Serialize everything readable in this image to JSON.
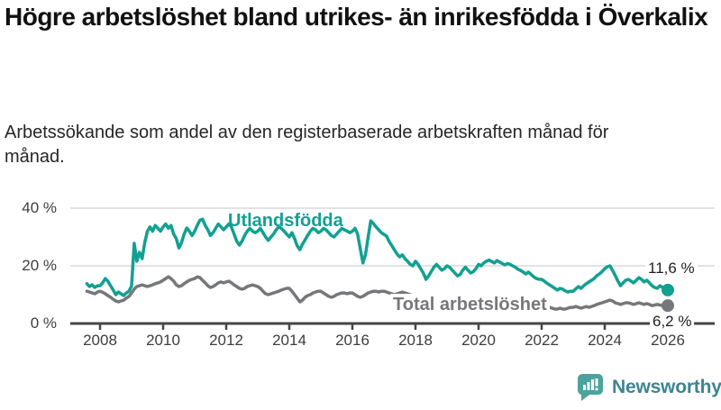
{
  "header": {
    "title": "Högre arbetslöshet bland utrikes- än inrikesfödda i Överkalix",
    "subtitle": "Arbetssökande som andel av den registerbaserade arbetskraften månad för månad."
  },
  "chart_data": {
    "type": "line",
    "title": "Högre arbetslöshet bland utrikes- än inrikesfödda i Överkalix",
    "xlabel": "",
    "ylabel": "",
    "xlim": [
      2007.3,
      2026.9
    ],
    "ylim": [
      0,
      44
    ],
    "grid": "horizontal-only",
    "legend_position": "inline-labels-on-lines",
    "x_ticks": [
      2008,
      2010,
      2012,
      2014,
      2016,
      2018,
      2020,
      2022,
      2024,
      2026
    ],
    "y_ticks": [
      {
        "value": 0,
        "label": "0 %"
      },
      {
        "value": 20,
        "label": "20 %"
      },
      {
        "value": 40,
        "label": "40 %"
      }
    ],
    "x_start_year": 2007.5833,
    "x_step_years": 0.08333,
    "series": [
      {
        "name": "Utlandsfödda",
        "color": "#12A092",
        "end_label": "11,6 %",
        "end_value": 11.6,
        "values": [
          13.8,
          12.8,
          13.4,
          12.5,
          13.1,
          13.1,
          14.1,
          15.6,
          14.7,
          13.1,
          11.6,
          10.0,
          10.9,
          10.3,
          9.7,
          10.6,
          11.2,
          13.0,
          27.8,
          21.6,
          24.7,
          22.5,
          28.0,
          31.9,
          33.5,
          32.0,
          34.0,
          33.0,
          32.0,
          33.5,
          34.5,
          33.0,
          34.0,
          31.0,
          29.4,
          26.2,
          28.0,
          31.0,
          33.1,
          32.0,
          30.5,
          32.0,
          34.0,
          35.8,
          36.2,
          34.0,
          32.5,
          30.5,
          31.5,
          33.0,
          34.5,
          33.5,
          32.5,
          33.5,
          34.5,
          33.5,
          31.0,
          28.5,
          27.2,
          28.5,
          30.5,
          32.0,
          33.0,
          32.0,
          31.5,
          32.0,
          33.0,
          31.5,
          30.0,
          28.8,
          30.0,
          31.0,
          32.5,
          33.5,
          33.0,
          32.0,
          31.0,
          30.0,
          31.5,
          29.5,
          27.0,
          25.6,
          27.5,
          29.0,
          30.5,
          32.0,
          33.0,
          32.5,
          31.5,
          32.0,
          33.0,
          32.5,
          31.5,
          30.5,
          30.0,
          31.0,
          32.0,
          33.0,
          32.5,
          32.0,
          31.5,
          32.0,
          33.0,
          31.0,
          26.0,
          21.0,
          24.0,
          30.0,
          35.6,
          34.7,
          33.5,
          32.5,
          31.5,
          30.9,
          30.3,
          28.4,
          27.0,
          25.5,
          24.1,
          23.1,
          23.8,
          22.5,
          21.6,
          20.5,
          20.0,
          21.6,
          20.5,
          19.0,
          17.5,
          15.3,
          16.5,
          18.0,
          19.5,
          20.5,
          19.5,
          18.5,
          19.0,
          20.0,
          19.5,
          18.5,
          17.5,
          16.5,
          17.0,
          18.5,
          19.5,
          18.5,
          17.5,
          18.0,
          19.0,
          20.5,
          20.0,
          21.0,
          21.6,
          22.0,
          21.5,
          21.0,
          21.8,
          21.3,
          20.8,
          20.3,
          20.8,
          20.5,
          20.0,
          19.5,
          18.8,
          18.4,
          17.8,
          17.2,
          17.8,
          17.0,
          16.2,
          15.6,
          15.3,
          15.3,
          14.7,
          14.0,
          13.4,
          12.8,
          12.2,
          11.6,
          12.2,
          11.9,
          11.3,
          10.9,
          11.2,
          11.2,
          12.0,
          12.8,
          12.2,
          13.1,
          13.8,
          14.4,
          15.0,
          15.6,
          16.6,
          17.2,
          18.0,
          19.0,
          19.7,
          20.0,
          18.4,
          16.6,
          14.7,
          13.1,
          14.1,
          15.0,
          15.3,
          14.7,
          14.1,
          15.0,
          15.9,
          15.3,
          14.4,
          15.0,
          14.1,
          13.1,
          12.5,
          12.2,
          13.1,
          12.5,
          11.9,
          11.6
        ]
      },
      {
        "name": "Total arbetslöshet",
        "color": "#76777A",
        "end_label": "6,2 %",
        "end_value": 6.2,
        "values": [
          11.2,
          10.9,
          10.6,
          10.3,
          10.9,
          11.2,
          10.8,
          10.3,
          9.7,
          9.1,
          8.4,
          7.8,
          7.5,
          7.8,
          8.1,
          8.8,
          9.4,
          10.6,
          11.9,
          12.8,
          13.1,
          13.4,
          13.1,
          12.8,
          13.1,
          13.4,
          13.8,
          14.1,
          14.4,
          15.0,
          15.6,
          16.2,
          15.6,
          14.7,
          13.4,
          12.8,
          13.1,
          13.8,
          14.4,
          15.0,
          15.3,
          15.6,
          16.2,
          15.9,
          15.0,
          14.1,
          13.1,
          12.5,
          12.8,
          13.4,
          14.1,
          14.4,
          14.1,
          14.4,
          14.7,
          14.1,
          13.4,
          12.8,
          12.2,
          11.9,
          12.2,
          12.8,
          13.1,
          13.4,
          13.1,
          12.8,
          12.2,
          11.2,
          10.3,
          10.0,
          10.3,
          10.6,
          10.9,
          11.2,
          11.6,
          11.9,
          12.2,
          12.2,
          11.2,
          10.0,
          8.8,
          7.5,
          8.1,
          9.1,
          9.7,
          10.0,
          10.6,
          10.9,
          11.2,
          11.2,
          10.6,
          10.0,
          9.4,
          9.1,
          9.4,
          10.0,
          10.3,
          10.6,
          10.6,
          10.3,
          10.6,
          10.6,
          10.0,
          9.4,
          9.1,
          9.4,
          10.0,
          10.6,
          10.9,
          11.2,
          11.2,
          10.9,
          11.2,
          11.2,
          10.9,
          10.6,
          10.3,
          10.0,
          10.3,
          10.6,
          10.9,
          10.6,
          10.3,
          10.0,
          9.7,
          9.4,
          9.1,
          8.8,
          8.4,
          8.1,
          7.8,
          7.5,
          7.8,
          8.1,
          8.4,
          8.1,
          8.4,
          8.4,
          8.1,
          7.8,
          7.5,
          7.2,
          7.5,
          7.8,
          8.1,
          7.8,
          7.5,
          7.8,
          8.1,
          8.4,
          8.1,
          8.8,
          9.4,
          9.7,
          9.4,
          9.1,
          9.4,
          9.1,
          8.8,
          8.4,
          8.8,
          8.8,
          8.4,
          8.1,
          7.8,
          7.5,
          7.2,
          6.9,
          7.2,
          6.9,
          6.6,
          6.2,
          6.6,
          6.6,
          6.2,
          5.9,
          5.6,
          5.3,
          5.0,
          5.0,
          5.3,
          5.0,
          5.0,
          5.3,
          5.6,
          5.6,
          5.9,
          5.6,
          5.3,
          5.6,
          5.9,
          5.6,
          5.9,
          6.2,
          6.6,
          6.9,
          7.2,
          7.5,
          7.8,
          8.1,
          7.8,
          7.2,
          6.9,
          6.6,
          6.9,
          7.2,
          7.2,
          6.9,
          6.6,
          6.9,
          7.2,
          6.9,
          6.6,
          6.9,
          6.6,
          6.2,
          6.4,
          6.6,
          6.4,
          6.2,
          6.2,
          6.2
        ]
      }
    ]
  },
  "colors": {
    "grid": "#d8d8d8",
    "axis": "#454545",
    "tick_text": "#3d3d3d",
    "brand_teal": "#4BA39C",
    "brand_text": "#3d8493"
  },
  "branding": {
    "logo_text": "Newsworthy",
    "logo_icon": "newsworthy-speech-bubble-bar-chart-icon"
  }
}
